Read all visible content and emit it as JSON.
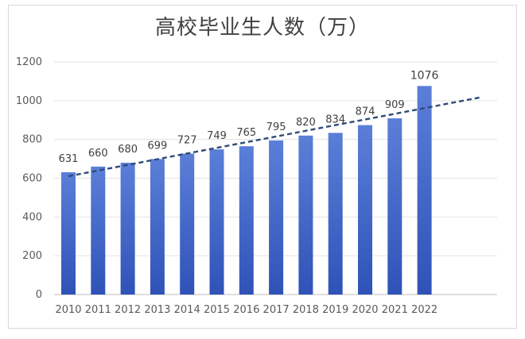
{
  "chart_data": {
    "type": "bar",
    "title": "高校毕业生人数（万）",
    "categories": [
      "2010",
      "2011",
      "2012",
      "2013",
      "2014",
      "2015",
      "2016",
      "2017",
      "2018",
      "2019",
      "2020",
      "2021",
      "2022"
    ],
    "values": [
      631,
      660,
      680,
      699,
      727,
      749,
      765,
      795,
      820,
      834,
      874,
      909,
      1076
    ],
    "ylim": [
      0,
      1200
    ],
    "yticks": [
      0,
      200,
      400,
      600,
      800,
      1000,
      1200
    ],
    "grid": true,
    "bar_color_top": "#5b7fd8",
    "bar_color_bottom": "#2f52b8",
    "trendline": {
      "type": "linear",
      "style": "dashed",
      "color": "#2e4a78"
    }
  }
}
